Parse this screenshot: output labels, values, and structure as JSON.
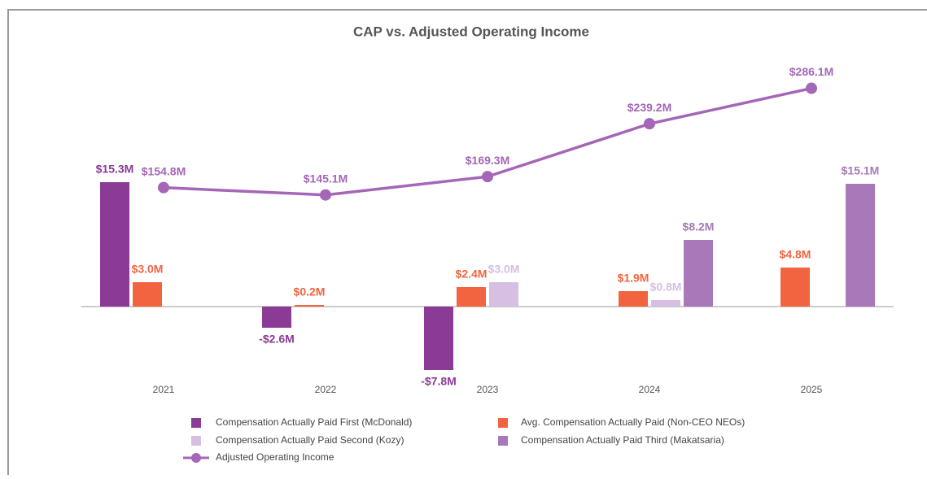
{
  "chart_data": {
    "type": "bar",
    "title": "CAP vs. Adjusted Operating Income",
    "categories": [
      "2021",
      "2022",
      "2023",
      "2024",
      "2025"
    ],
    "ylim": [
      -10,
      30
    ],
    "y2lim": [
      -110,
      320
    ],
    "series": [
      {
        "name": "Compensation Actually Paid First (McDonald)",
        "color": "#8b3a96",
        "values": [
          15.3,
          -2.6,
          -7.8,
          null,
          null
        ],
        "value_labels": [
          "$15.3M",
          "-$2.6M",
          "-$7.8M",
          null,
          null
        ]
      },
      {
        "name": "Avg. Compensation Actually Paid (Non-CEO NEOs)",
        "color": "#f26440",
        "values": [
          3.0,
          0.2,
          2.4,
          1.9,
          4.8
        ],
        "value_labels": [
          "$3.0M",
          "$0.2M",
          "$2.4M",
          "$1.9M",
          "$4.8M"
        ]
      },
      {
        "name": "Compensation Actually Paid Second (Kozy)",
        "color": "#d6bfe0",
        "values": [
          null,
          null,
          3.0,
          0.8,
          null
        ],
        "value_labels": [
          null,
          null,
          "$3.0M",
          "$0.8M",
          null
        ]
      },
      {
        "name": "Compensation Actually Paid Third (Makatsaria)",
        "color": "#a878b8",
        "values": [
          null,
          null,
          null,
          8.2,
          15.1
        ],
        "value_labels": [
          null,
          null,
          null,
          "$8.2M",
          "$15.1M"
        ]
      },
      {
        "name": "Adjusted Operating Income",
        "type": "line",
        "axis": "y2",
        "color": "#a466b6",
        "values": [
          154.8,
          145.1,
          169.3,
          239.2,
          286.1
        ],
        "value_labels": [
          "$154.8M",
          "$145.1M",
          "$169.3M",
          "$239.2M",
          "$286.1M"
        ]
      }
    ]
  }
}
